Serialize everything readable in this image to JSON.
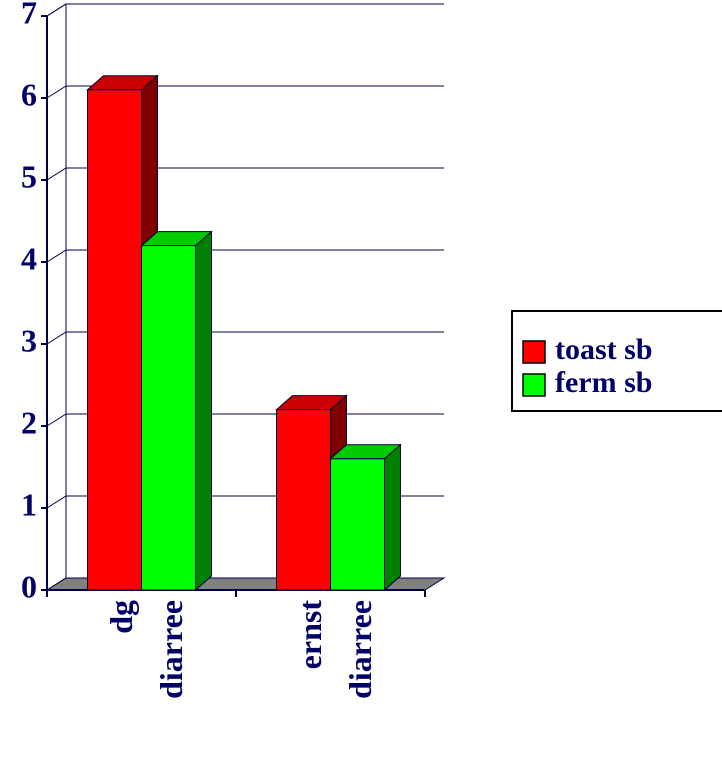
{
  "chart_data": {
    "type": "bar3d",
    "categories": [
      "dg diarree",
      "ernst diarree"
    ],
    "series": [
      {
        "name": "toast sb",
        "color": "#ff0000",
        "values": [
          6.1,
          2.2
        ]
      },
      {
        "name": "ferm sb",
        "color": "#00ff00",
        "values": [
          4.2,
          1.6
        ]
      }
    ],
    "ylim": [
      0,
      7
    ],
    "yticks": [
      0,
      1,
      2,
      3,
      4,
      5,
      6,
      7
    ],
    "grid": true,
    "legend": "right"
  }
}
